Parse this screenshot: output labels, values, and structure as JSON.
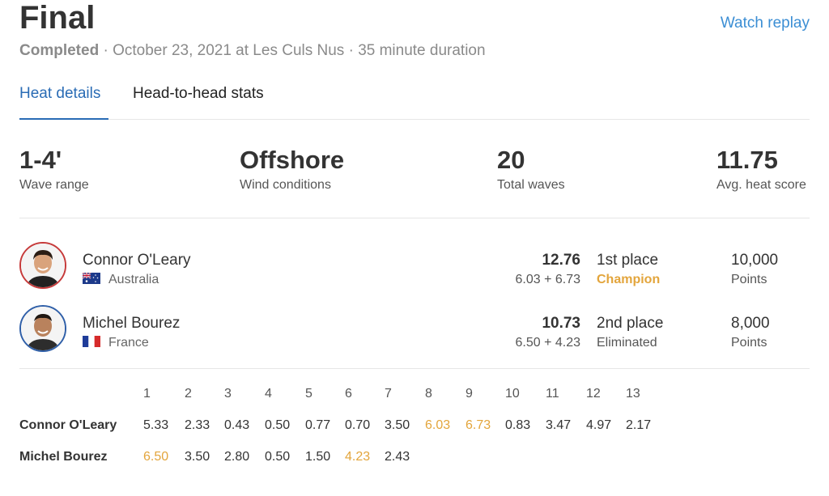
{
  "header": {
    "title": "Final",
    "replay_label": "Watch replay",
    "status": "Completed",
    "separator": "·",
    "date_location": "October 23, 2021 at Les Culs Nus",
    "duration": "35 minute duration"
  },
  "tabs": [
    {
      "label": "Heat details",
      "active": true
    },
    {
      "label": "Head-to-head stats",
      "active": false
    }
  ],
  "stats": [
    {
      "value": "1-4'",
      "label": "Wave range"
    },
    {
      "value": "Offshore",
      "label": "Wind conditions"
    },
    {
      "value": "20",
      "label": "Total waves"
    },
    {
      "value": "11.75",
      "label": "Avg. heat score"
    }
  ],
  "competitors": [
    {
      "name": "Connor O'Leary",
      "country": "Australia",
      "flag": "australia-flag-icon",
      "score": "12.76",
      "breakdown": "6.03 + 6.73",
      "place": "1st place",
      "result": "Champion",
      "points": "10,000",
      "points_label": "Points",
      "avatar_ring": "#c63a3a"
    },
    {
      "name": "Michel Bourez",
      "country": "France",
      "flag": "france-flag-icon",
      "score": "10.73",
      "breakdown": "6.50 + 4.23",
      "place": "2nd place",
      "result": "Eliminated",
      "points": "8,000",
      "points_label": "Points",
      "avatar_ring": "#2f5fa8"
    }
  ],
  "waves": {
    "headers": [
      "1",
      "2",
      "3",
      "4",
      "5",
      "6",
      "7",
      "8",
      "9",
      "10",
      "11",
      "12",
      "13"
    ],
    "rows": [
      {
        "name": "Connor O'Leary",
        "scores": [
          "5.33",
          "2.33",
          "0.43",
          "0.50",
          "0.77",
          "0.70",
          "3.50",
          "6.03",
          "6.73",
          "0.83",
          "3.47",
          "4.97",
          "2.17"
        ],
        "counting": [
          7,
          8
        ]
      },
      {
        "name": "Michel Bourez",
        "scores": [
          "6.50",
          "3.50",
          "2.80",
          "0.50",
          "1.50",
          "4.23",
          "2.43"
        ],
        "counting": [
          0,
          5
        ]
      }
    ]
  },
  "colors": {
    "accent": "#2a6cb5",
    "link": "#3b8ed4",
    "highlight": "#e3a53c"
  }
}
